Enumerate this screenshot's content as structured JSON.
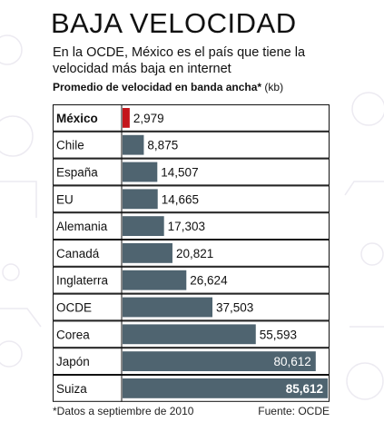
{
  "title": "BAJA VELOCIDAD",
  "subtitle": "En la OCDE, México es el país que tiene la velocidad más baja en internet",
  "heading_bold": "Promedio de velocidad en banda ancha*",
  "heading_unit": " (kb)",
  "footnote": "*Datos a septiembre de 2010",
  "source": "Fuente: OCDE",
  "colors": {
    "bar": "#4f6470",
    "highlight": "#c4161c",
    "row_border": "#111111"
  },
  "chart_data": {
    "type": "bar",
    "orientation": "horizontal",
    "title": "BAJA VELOCIDAD",
    "xlabel": "",
    "ylabel": "",
    "unit": "kb",
    "categories": [
      "México",
      "Chile",
      "España",
      "EU",
      "Alemania",
      "Canadá",
      "Inglaterra",
      "OCDE",
      "Corea",
      "Japón",
      "Suiza"
    ],
    "values": [
      2979,
      8875,
      14507,
      14665,
      17303,
      20821,
      26624,
      37503,
      55593,
      80612,
      85612
    ],
    "labels": [
      "2,979",
      "8,875",
      "14,507",
      "14,665",
      "17,303",
      "20,821",
      "26,624",
      "37,503",
      "55,593",
      "80,612",
      "85,612"
    ],
    "highlight_category": "México",
    "xlim": [
      0,
      85612
    ],
    "grid": false,
    "legend": "none"
  }
}
